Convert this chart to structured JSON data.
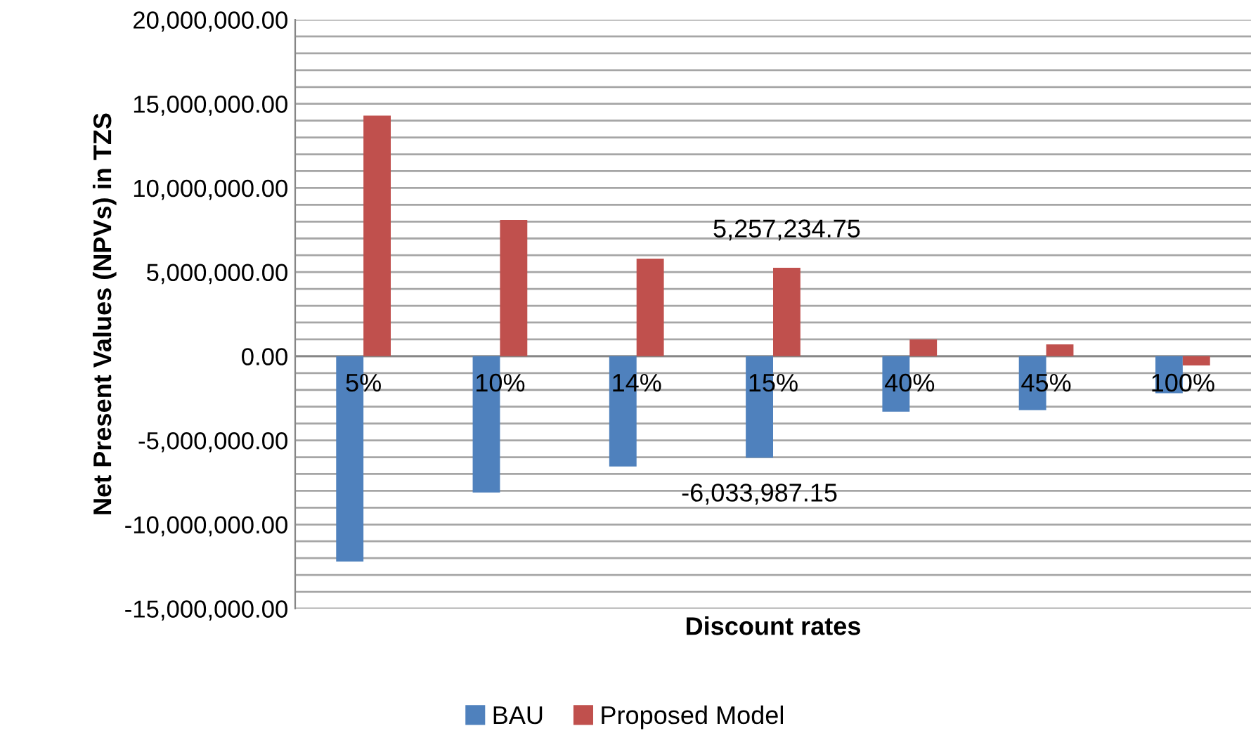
{
  "chart_data": {
    "type": "bar",
    "xlabel": "Discount rates",
    "ylabel": "Net Present Values (NPVs) in TZS",
    "categories": [
      "5%",
      "10%",
      "14%",
      "15%",
      "40%",
      "45%",
      "100%"
    ],
    "series": [
      {
        "name": "BAU",
        "color": "#4f81bd",
        "values": [
          -12200000,
          -8100000,
          -6550000,
          -6033987.15,
          -3300000,
          -3200000,
          -2200000
        ],
        "value_labels": [
          null,
          null,
          null,
          "-6,033,987.15",
          null,
          null,
          null
        ]
      },
      {
        "name": "Proposed Model",
        "color": "#c0504d",
        "values": [
          14300000,
          8100000,
          5800000,
          5257234.75,
          1000000,
          700000,
          -550000
        ],
        "value_labels": [
          null,
          null,
          null,
          "5,257,234.75",
          null,
          null,
          null
        ]
      }
    ],
    "ylim": [
      -15000000,
      20000000
    ],
    "yticks": [
      {
        "value": -15000000,
        "label": "-15,000,000.00"
      },
      {
        "value": -14000000,
        "label": null
      },
      {
        "value": -13000000,
        "label": null
      },
      {
        "value": -12000000,
        "label": null
      },
      {
        "value": -11000000,
        "label": null
      },
      {
        "value": -10000000,
        "label": "-10,000,000.00"
      },
      {
        "value": -9000000,
        "label": null
      },
      {
        "value": -8000000,
        "label": null
      },
      {
        "value": -7000000,
        "label": null
      },
      {
        "value": -6000000,
        "label": null
      },
      {
        "value": -5000000,
        "label": "-5,000,000.00"
      },
      {
        "value": -4000000,
        "label": null
      },
      {
        "value": -3000000,
        "label": null
      },
      {
        "value": -2000000,
        "label": null
      },
      {
        "value": -1000000,
        "label": null
      },
      {
        "value": 0,
        "label": "0.00"
      },
      {
        "value": 1000000,
        "label": null
      },
      {
        "value": 2000000,
        "label": null
      },
      {
        "value": 3000000,
        "label": null
      },
      {
        "value": 4000000,
        "label": null
      },
      {
        "value": 5000000,
        "label": "5,000,000.00"
      },
      {
        "value": 6000000,
        "label": null
      },
      {
        "value": 7000000,
        "label": null
      },
      {
        "value": 8000000,
        "label": null
      },
      {
        "value": 9000000,
        "label": null
      },
      {
        "value": 10000000,
        "label": "10,000,000.00"
      },
      {
        "value": 11000000,
        "label": null
      },
      {
        "value": 12000000,
        "label": null
      },
      {
        "value": 13000000,
        "label": null
      },
      {
        "value": 14000000,
        "label": null
      },
      {
        "value": 15000000,
        "label": "15,000,000.00"
      },
      {
        "value": 16000000,
        "label": null
      },
      {
        "value": 17000000,
        "label": null
      },
      {
        "value": 18000000,
        "label": null
      },
      {
        "value": 19000000,
        "label": null
      },
      {
        "value": 20000000,
        "label": "20,000,000.00"
      }
    ],
    "grid": "y",
    "legend": "bottom"
  }
}
